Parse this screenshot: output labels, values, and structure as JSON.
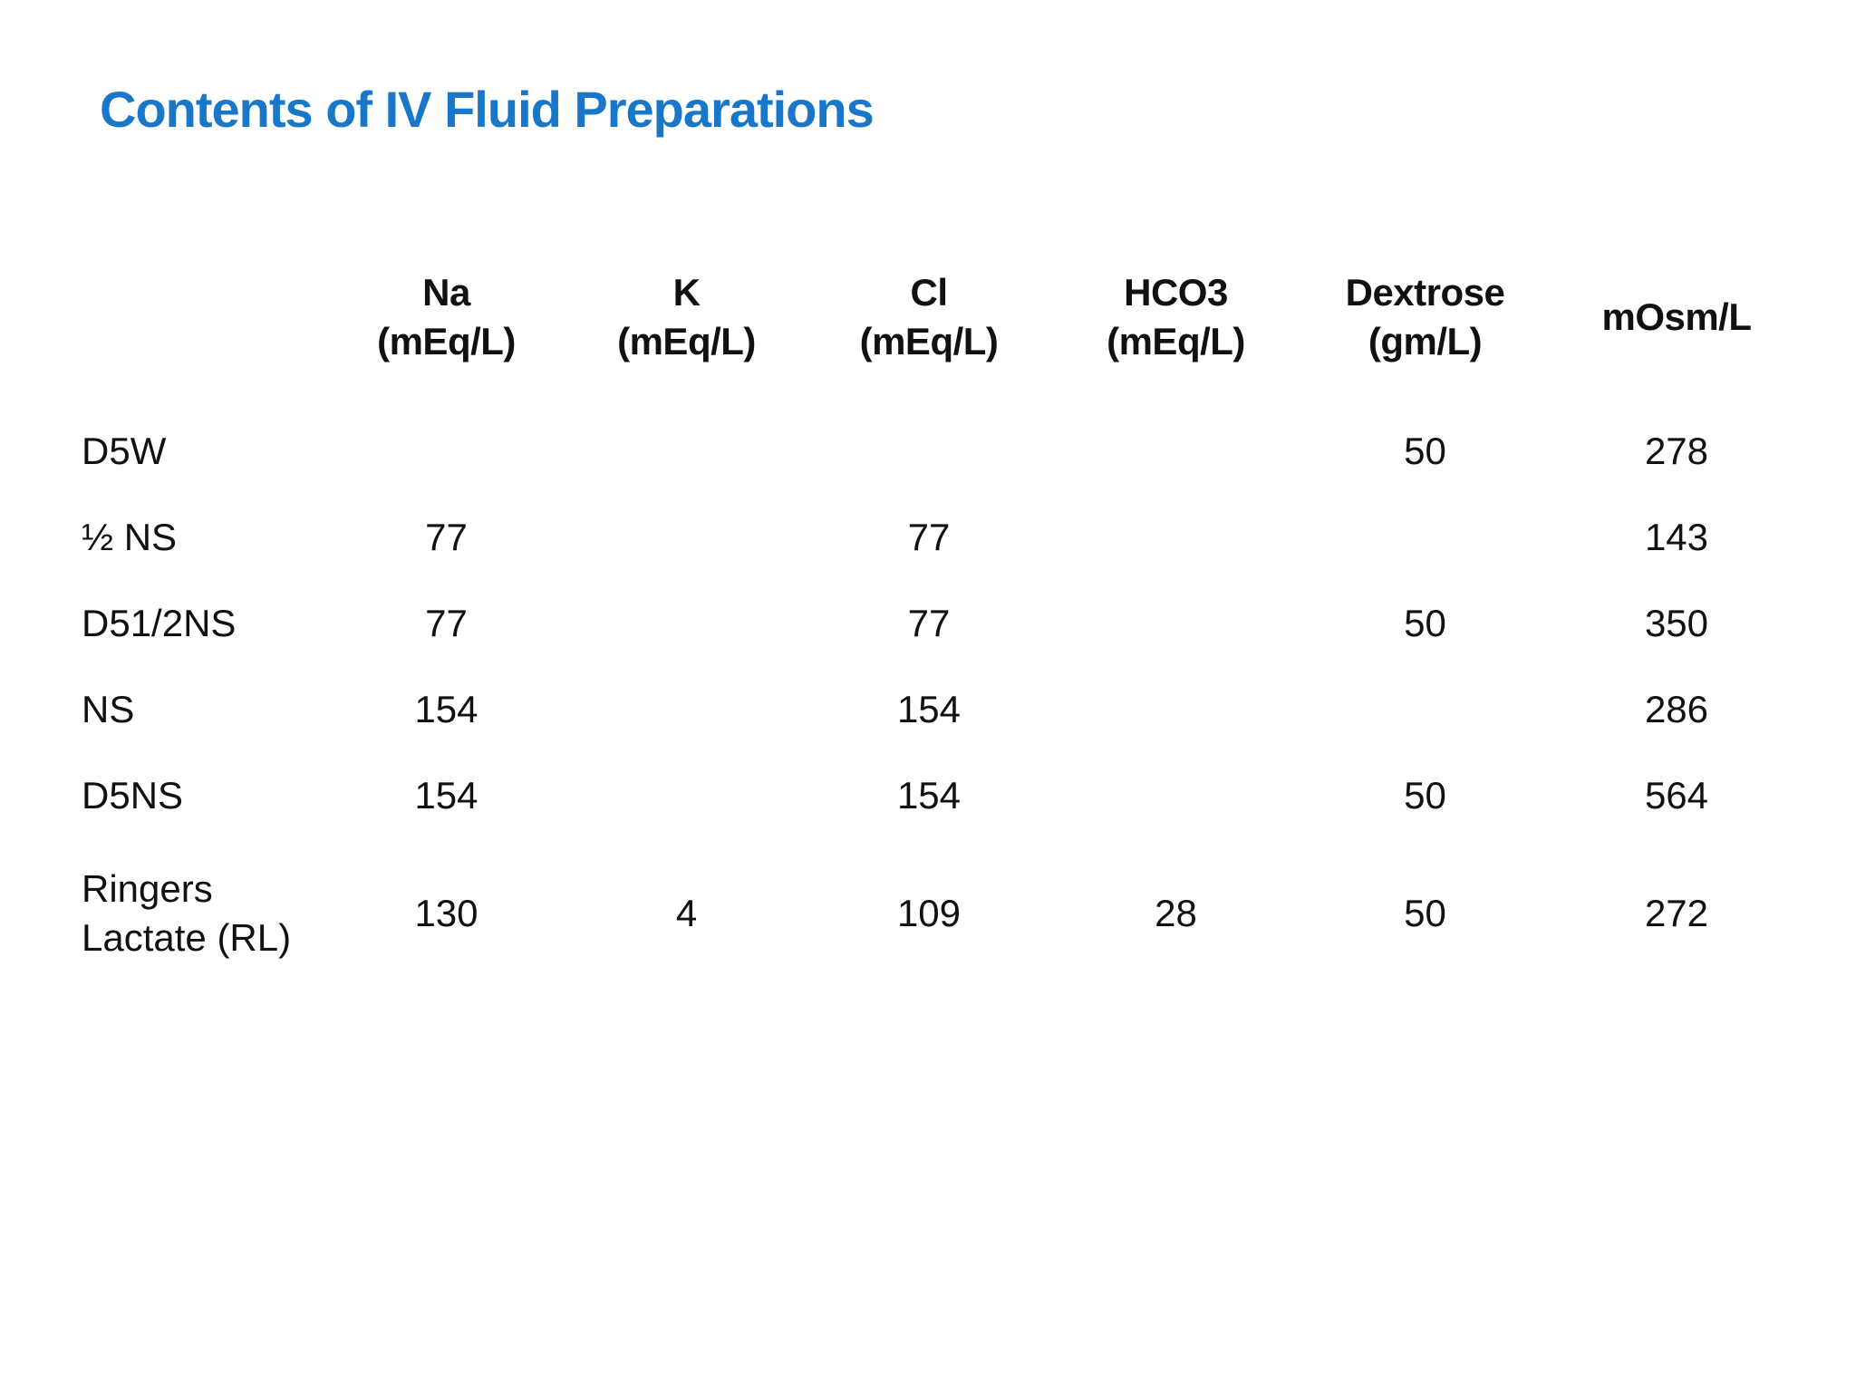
{
  "slide": {
    "title": "Contents of IV Fluid Preparations",
    "title_color": "#1877c8",
    "background_color": "#ffffff",
    "text_color": "#111111"
  },
  "table": {
    "columns": [
      {
        "label": "Na",
        "unit": "(mEq/L)"
      },
      {
        "label": "K",
        "unit": "(mEq/L)"
      },
      {
        "label": "Cl",
        "unit": "(mEq/L)"
      },
      {
        "label": "HCO3",
        "unit": "(mEq/L)"
      },
      {
        "label": "Dextrose",
        "unit": "(gm/L)"
      },
      {
        "label": "mOsm/L",
        "unit": ""
      }
    ],
    "rows": [
      {
        "label": "D5W",
        "values": [
          "",
          "",
          "",
          "",
          "50",
          "278"
        ]
      },
      {
        "label": "½ NS",
        "values": [
          "77",
          "",
          "77",
          "",
          "",
          "143"
        ]
      },
      {
        "label": "D51/2NS",
        "values": [
          "77",
          "",
          "77",
          "",
          "50",
          "350"
        ]
      },
      {
        "label": "NS",
        "values": [
          "154",
          "",
          "154",
          "",
          "",
          "286"
        ]
      },
      {
        "label": "D5NS",
        "values": [
          "154",
          "",
          "154",
          "",
          "50",
          "564"
        ]
      },
      {
        "label": "Ringers Lactate (RL)",
        "values": [
          "130",
          "4",
          "109",
          "28",
          "50",
          "272"
        ]
      }
    ]
  }
}
